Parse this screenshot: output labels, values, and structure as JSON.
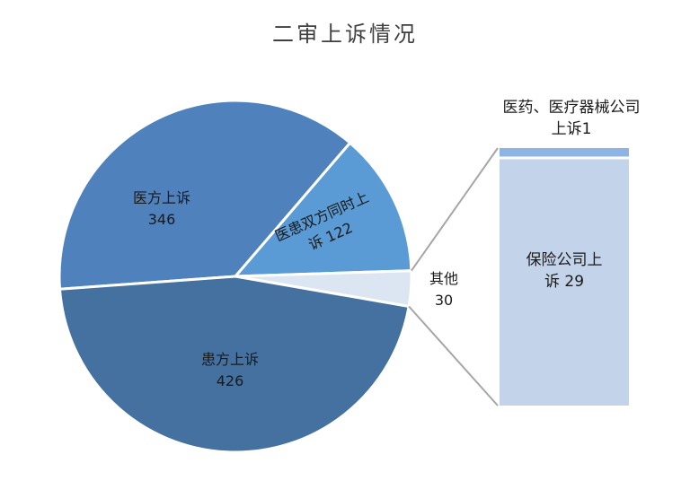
{
  "chart_data": {
    "type": "pie",
    "variant": "bar-of-pie",
    "title": "二审上诉情况",
    "slices": [
      {
        "name": "医方上诉",
        "value": 346,
        "value_label": "346",
        "color": "#4f81bd"
      },
      {
        "name": "医患双方同时上",
        "value": 122,
        "value_label": "诉 122",
        "color": "#5b9bd5"
      },
      {
        "name": "其他",
        "value": 30,
        "value_label": "30",
        "color": "#dce6f2"
      },
      {
        "name": "患方上诉",
        "value": 426,
        "value_label": "426",
        "color": "#44719f"
      }
    ],
    "breakdown_of": "其他",
    "breakdown": [
      {
        "name": "医药、医疗器械公司",
        "value": 1,
        "label_line2": "上诉1",
        "color": "#8db4e2"
      },
      {
        "name": "保险公司上",
        "value": 29,
        "label_line2": "诉 29",
        "color": "#c3d3ea"
      }
    ]
  }
}
